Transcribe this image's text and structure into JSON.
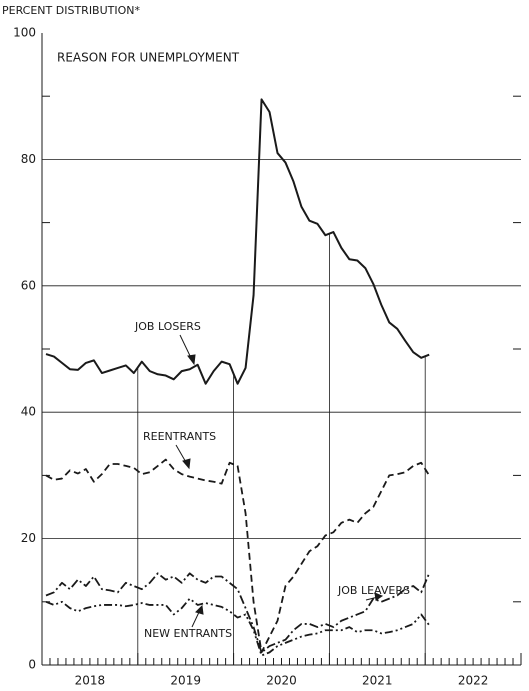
{
  "chart_data": {
    "type": "line",
    "y_label": "PERCENT DISTRIBUTION*",
    "title": "REASON FOR UNEMPLOYMENT",
    "categories": [
      null,
      null,
      null,
      null,
      null,
      "2018",
      null,
      null,
      null,
      null,
      null,
      null,
      null,
      null,
      null,
      null,
      null,
      "2019",
      null,
      null,
      null,
      null,
      null,
      null,
      null,
      null,
      null,
      null,
      null,
      "2020",
      null,
      null,
      null,
      null,
      null,
      null,
      null,
      null,
      null,
      null,
      null,
      "2021",
      null,
      null,
      null,
      null,
      null,
      null,
      null,
      null,
      null,
      null,
      null,
      "2022",
      null,
      null,
      null,
      null,
      null,
      null
    ],
    "series": [
      {
        "name": "JOB LOSERS",
        "color": "#1a1a1a",
        "dash": "none",
        "values": [
          49.2,
          48.8,
          47.8,
          46.8,
          46.7,
          47.8,
          48.2,
          46.2,
          46.6,
          47.0,
          47.4,
          46.2,
          48.0,
          46.5,
          46.0,
          45.8,
          45.2,
          46.5,
          46.8,
          47.5,
          44.5,
          46.5,
          48.0,
          47.6,
          44.5,
          47.0,
          58.5,
          89.5,
          87.5,
          81.0,
          79.5,
          76.5,
          72.5,
          70.3,
          69.8,
          68.0,
          68.5,
          66.0,
          64.2,
          64.0,
          62.8,
          60.3,
          57.0,
          54.2,
          53.2,
          51.3,
          49.5,
          48.6,
          49.1,
          null,
          null,
          null,
          null,
          null,
          null,
          null,
          null,
          null,
          null,
          null
        ]
      },
      {
        "name": "REENTRANTS",
        "color": "#1a1a1a",
        "dash": "7 4",
        "values": [
          30.0,
          29.3,
          29.5,
          30.8,
          30.3,
          31.0,
          29.0,
          30.2,
          31.8,
          31.8,
          31.5,
          31.2,
          30.2,
          30.5,
          31.5,
          32.5,
          31.0,
          30.2,
          29.8,
          29.5,
          29.2,
          29.0,
          28.7,
          32.0,
          31.5,
          24.0,
          10.0,
          2.0,
          4.5,
          7.0,
          12.5,
          14.0,
          16.0,
          18.0,
          18.8,
          20.5,
          21.0,
          22.5,
          23.0,
          22.5,
          24.0,
          25.0,
          27.5,
          30.0,
          30.2,
          30.5,
          31.5,
          32.0,
          30.0,
          null,
          null,
          null,
          null,
          null,
          null,
          null,
          null,
          null,
          null,
          null
        ]
      },
      {
        "name": "JOB LEAVERS",
        "color": "#1a1a1a",
        "dash": "9 3 2 3",
        "values": [
          11.0,
          11.5,
          13.0,
          12.0,
          13.5,
          12.5,
          14.0,
          12.0,
          11.8,
          11.5,
          13.0,
          12.5,
          12.0,
          13.0,
          14.5,
          13.5,
          14.0,
          13.0,
          14.5,
          13.5,
          13.0,
          14.0,
          14.0,
          13.0,
          12.0,
          9.0,
          6.0,
          2.0,
          3.0,
          3.5,
          4.0,
          5.5,
          6.5,
          6.5,
          6.0,
          6.5,
          6.0,
          7.0,
          7.5,
          8.0,
          8.5,
          10.5,
          10.0,
          10.5,
          11.0,
          12.0,
          12.5,
          11.5,
          14.5,
          null,
          null,
          null,
          null,
          null,
          null,
          null,
          null,
          null,
          null,
          null
        ]
      },
      {
        "name": "NEW ENTRANTS",
        "color": "#1a1a1a",
        "dash": "8 3 2 3 2 3",
        "values": [
          10.0,
          9.5,
          10.0,
          9.0,
          8.5,
          9.0,
          9.3,
          9.5,
          9.5,
          9.5,
          9.3,
          9.5,
          9.8,
          9.5,
          9.5,
          9.5,
          8.0,
          9.0,
          10.5,
          9.5,
          9.8,
          9.5,
          9.2,
          8.5,
          7.5,
          8.0,
          5.5,
          1.5,
          2.0,
          3.0,
          3.5,
          4.0,
          4.5,
          4.8,
          5.0,
          5.5,
          5.5,
          5.5,
          6.0,
          5.2,
          5.5,
          5.5,
          5.0,
          5.2,
          5.5,
          6.0,
          6.5,
          8.0,
          6.3,
          null,
          null,
          null,
          null,
          null,
          null,
          null,
          null,
          null,
          null,
          null
        ]
      }
    ],
    "ylim": [
      0,
      100
    ],
    "yticks": [
      0,
      20,
      40,
      60,
      80,
      100
    ],
    "yminor_ticks": [
      10,
      30,
      50,
      70,
      90
    ],
    "grid": true
  }
}
